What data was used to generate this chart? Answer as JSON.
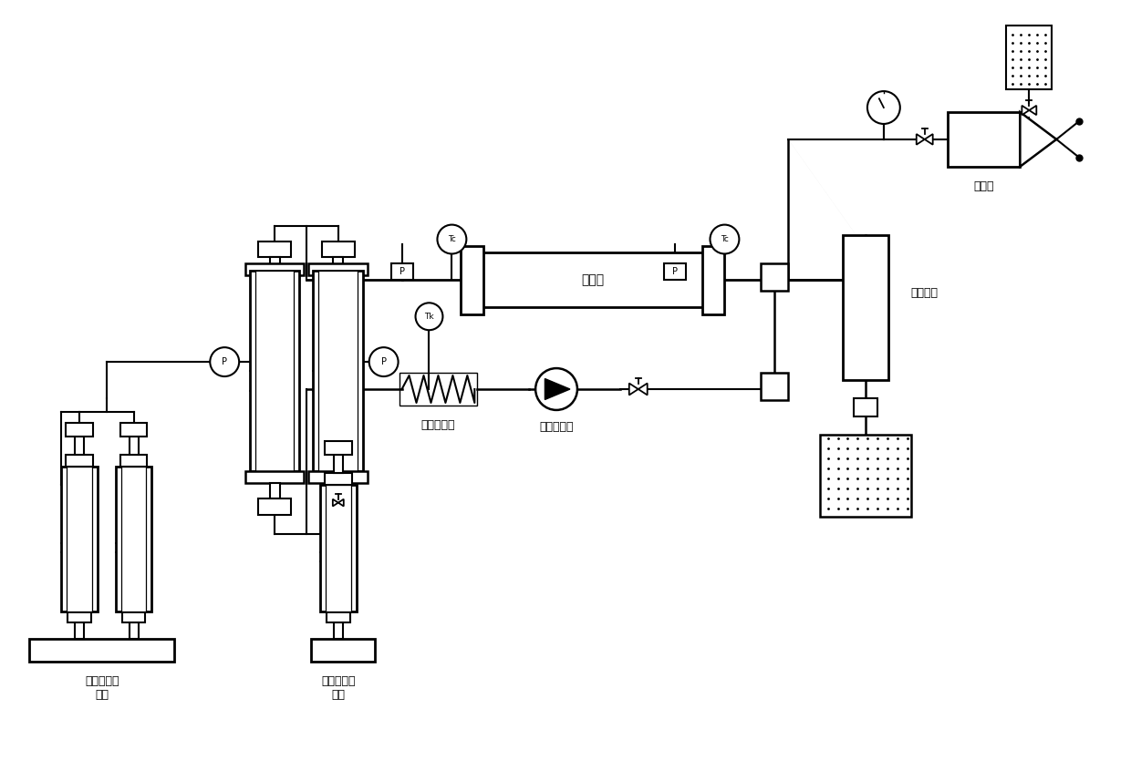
{
  "bg_color": "#ffffff",
  "line_color": "#000000",
  "labels": {
    "pump_dual": "恒速恒压泵\n双缸",
    "pump_single": "恒速恒压泵\n单缸",
    "heater": "加热控制器",
    "circ_pump": "环压循环泵",
    "holder": "夹持器",
    "back_press_vessel": "压压容器",
    "back_press_pump": "回压泵"
  },
  "figsize": [
    12.4,
    8.57
  ],
  "dpi": 100
}
